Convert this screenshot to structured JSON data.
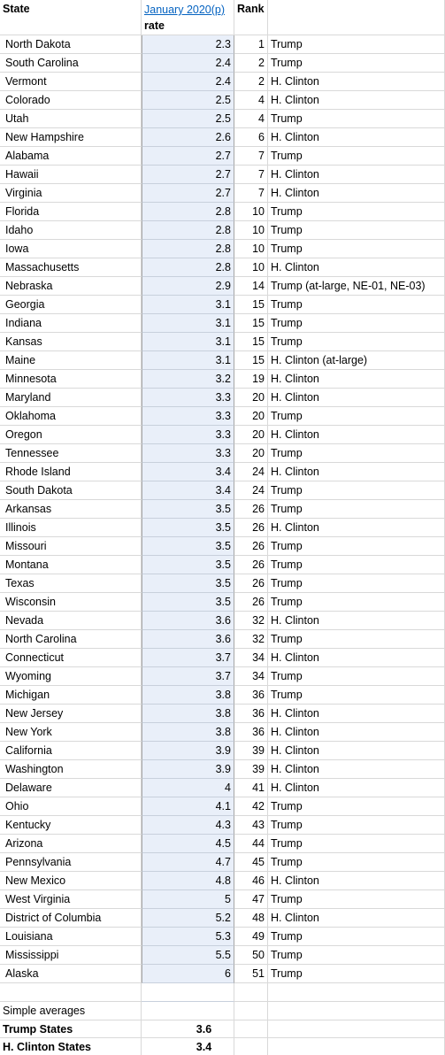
{
  "header": {
    "state": "State",
    "rate_top": "January 2020(p)",
    "rate_bottom": "rate",
    "rank": "Rank"
  },
  "table": {
    "rows": [
      [
        "North Dakota",
        2.3,
        1,
        "Trump"
      ],
      [
        "South Carolina",
        2.4,
        2,
        "Trump"
      ],
      [
        "Vermont",
        2.4,
        2,
        "H. Clinton"
      ],
      [
        "Colorado",
        2.5,
        4,
        "H. Clinton"
      ],
      [
        "Utah",
        2.5,
        4,
        "Trump"
      ],
      [
        "New Hampshire",
        2.6,
        6,
        "H. Clinton"
      ],
      [
        "Alabama",
        2.7,
        7,
        "Trump"
      ],
      [
        "Hawaii",
        2.7,
        7,
        "H. Clinton"
      ],
      [
        "Virginia",
        2.7,
        7,
        "H. Clinton"
      ],
      [
        "Florida",
        2.8,
        10,
        "Trump"
      ],
      [
        "Idaho",
        2.8,
        10,
        "Trump"
      ],
      [
        "Iowa",
        2.8,
        10,
        "Trump"
      ],
      [
        "Massachusetts",
        2.8,
        10,
        "H. Clinton"
      ],
      [
        "Nebraska",
        2.9,
        14,
        "Trump (at-large, NE-01, NE-03)"
      ],
      [
        "Georgia",
        3.1,
        15,
        "Trump"
      ],
      [
        "Indiana",
        3.1,
        15,
        "Trump"
      ],
      [
        "Kansas",
        3.1,
        15,
        "Trump"
      ],
      [
        "Maine",
        3.1,
        15,
        "H. Clinton (at-large)"
      ],
      [
        "Minnesota",
        3.2,
        19,
        "H. Clinton"
      ],
      [
        "Maryland",
        3.3,
        20,
        "H. Clinton"
      ],
      [
        "Oklahoma",
        3.3,
        20,
        "Trump"
      ],
      [
        "Oregon",
        3.3,
        20,
        "H. Clinton"
      ],
      [
        "Tennessee",
        3.3,
        20,
        "Trump"
      ],
      [
        "Rhode Island",
        3.4,
        24,
        "H. Clinton"
      ],
      [
        "South Dakota",
        3.4,
        24,
        "Trump"
      ],
      [
        "Arkansas",
        3.5,
        26,
        "Trump"
      ],
      [
        "Illinois",
        3.5,
        26,
        "H. Clinton"
      ],
      [
        "Missouri",
        3.5,
        26,
        "Trump"
      ],
      [
        "Montana",
        3.5,
        26,
        "Trump"
      ],
      [
        "Texas",
        3.5,
        26,
        "Trump"
      ],
      [
        "Wisconsin",
        3.5,
        26,
        "Trump"
      ],
      [
        "Nevada",
        3.6,
        32,
        "H. Clinton"
      ],
      [
        "North Carolina",
        3.6,
        32,
        "Trump"
      ],
      [
        "Connecticut",
        3.7,
        34,
        "H. Clinton"
      ],
      [
        "Wyoming",
        3.7,
        34,
        "Trump"
      ],
      [
        "Michigan",
        3.8,
        36,
        "Trump"
      ],
      [
        "New Jersey",
        3.8,
        36,
        "H. Clinton"
      ],
      [
        "New York",
        3.8,
        36,
        "H. Clinton"
      ],
      [
        "California",
        3.9,
        39,
        "H. Clinton"
      ],
      [
        "Washington",
        3.9,
        39,
        "H. Clinton"
      ],
      [
        "Delaware",
        4,
        41,
        "H. Clinton"
      ],
      [
        "Ohio",
        4.1,
        42,
        "Trump"
      ],
      [
        "Kentucky",
        4.3,
        43,
        "Trump"
      ],
      [
        "Arizona",
        4.5,
        44,
        "Trump"
      ],
      [
        "Pennsylvania",
        4.7,
        45,
        "Trump"
      ],
      [
        "New Mexico",
        4.8,
        46,
        "H. Clinton"
      ],
      [
        "West Virginia",
        5,
        47,
        "Trump"
      ],
      [
        "District of Columbia",
        5.2,
        48,
        "H. Clinton"
      ],
      [
        "Louisiana",
        5.3,
        49,
        "Trump"
      ],
      [
        "Mississippi",
        5.5,
        50,
        "Trump"
      ],
      [
        "Alaska",
        6,
        51,
        "Trump"
      ]
    ]
  },
  "footer": {
    "label": "Simple averages",
    "rows": [
      [
        "Trump States",
        3.6
      ],
      [
        "H. Clinton States",
        3.4
      ]
    ]
  }
}
